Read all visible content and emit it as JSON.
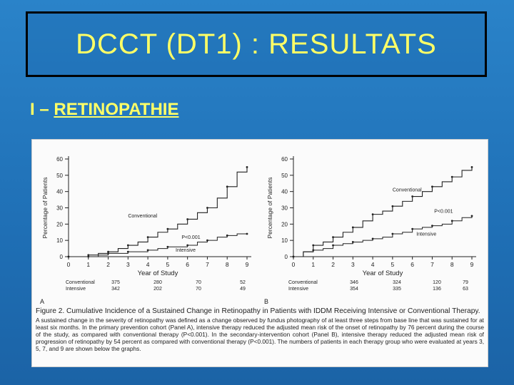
{
  "slide": {
    "title": "DCCT (DT1) : RESULTATS",
    "subtitle_prefix": "I – ",
    "subtitle_main": "RETINOPATHIE"
  },
  "colors": {
    "title": "#ffff66",
    "background": "#2a83c9",
    "ink": "#222222"
  },
  "chart_data": [
    {
      "panel": "A",
      "type": "line",
      "ylabel": "Percentage of Patients",
      "xlabel": "Year of Study",
      "xlim": [
        0,
        9
      ],
      "ylim": [
        0,
        60
      ],
      "x_ticks": [
        "0",
        "1",
        "2",
        "3",
        "4",
        "5",
        "6",
        "7",
        "8",
        "9"
      ],
      "y_ticks": [
        "0",
        "10",
        "20",
        "30",
        "40",
        "50",
        "60"
      ],
      "series": [
        {
          "name": "Conventional",
          "x": [
            0,
            0.5,
            1,
            1.5,
            2,
            2.5,
            3,
            3.5,
            4,
            4.5,
            5,
            5.5,
            6,
            6.5,
            7,
            7.5,
            8,
            8.5,
            9
          ],
          "values": [
            0,
            0,
            1,
            2,
            3,
            5,
            7,
            9,
            12,
            15,
            17,
            20,
            23,
            27,
            30,
            36,
            43,
            52,
            55
          ]
        },
        {
          "name": "Intensive",
          "x": [
            0,
            0.5,
            1,
            1.5,
            2,
            2.5,
            3,
            3.5,
            4,
            4.5,
            5,
            5.5,
            6,
            6.5,
            7,
            7.5,
            8,
            8.5,
            9
          ],
          "values": [
            0,
            0,
            0,
            1,
            2,
            2,
            3,
            3,
            4,
            5,
            6,
            6,
            7,
            9,
            10,
            12,
            13,
            14,
            14
          ]
        }
      ],
      "annotations": {
        "conventional": "Conventional",
        "intensive": "Intensive",
        "pvalue": "P<0.001"
      },
      "at_risk": {
        "rows": [
          {
            "label": "Conventional",
            "values": [
              "375",
              "280",
              "70",
              "52"
            ]
          },
          {
            "label": "Intensive",
            "values": [
              "342",
              "202",
              "70",
              "49"
            ]
          }
        ]
      }
    },
    {
      "panel": "B",
      "type": "line",
      "ylabel": "Percentage of Patients",
      "xlabel": "Year of Study",
      "xlim": [
        0,
        9
      ],
      "ylim": [
        0,
        60
      ],
      "x_ticks": [
        "0",
        "1",
        "2",
        "3",
        "4",
        "5",
        "6",
        "7",
        "8",
        "9"
      ],
      "y_ticks": [
        "0",
        "10",
        "20",
        "30",
        "40",
        "50",
        "60"
      ],
      "series": [
        {
          "name": "Conventional",
          "x": [
            0,
            0.5,
            1,
            1.5,
            2,
            2.5,
            3,
            3.5,
            4,
            4.5,
            5,
            5.5,
            6,
            6.5,
            7,
            7.5,
            8,
            8.5,
            9
          ],
          "values": [
            0,
            3,
            7,
            9,
            12,
            15,
            18,
            22,
            26,
            28,
            31,
            34,
            37,
            40,
            43,
            46,
            49,
            53,
            55
          ]
        },
        {
          "name": "Intensive",
          "x": [
            0,
            0.5,
            1,
            1.5,
            2,
            2.5,
            3,
            3.5,
            4,
            4.5,
            5,
            5.5,
            6,
            6.5,
            7,
            7.5,
            8,
            8.5,
            9
          ],
          "values": [
            0,
            3,
            4,
            5,
            7,
            8,
            9,
            10,
            11,
            12,
            14,
            15,
            17,
            18,
            19,
            20,
            22,
            24,
            25
          ]
        }
      ],
      "annotations": {
        "conventional": "Conventional",
        "intensive": "Intensive",
        "pvalue": "P<0.001"
      },
      "at_risk": {
        "rows": [
          {
            "label": "Conventional",
            "values": [
              "346",
              "324",
              "120",
              "79"
            ]
          },
          {
            "label": "Intensive",
            "values": [
              "354",
              "335",
              "136",
              "63"
            ]
          }
        ]
      }
    }
  ],
  "figure": {
    "caption_title": "Figure 2. Cumulative Incidence of a Sustained Change in Retinopathy in Patients with IDDM Receiving Intensive or Conventional Therapy.",
    "caption_body": "A sustained change in the severity of retinopathy was defined as a change observed by fundus photography of at least three steps from base line that was sustained for at least six months. In the primary prevention cohort (Panel A), intensive therapy reduced the adjusted mean risk of the onset of retinopathy by 76 percent during the course of the study, as compared with conventional therapy (P<0.001). In the secondary-intervention cohort (Panel B), intensive therapy reduced the adjusted mean risk of progression of retinopathy by 54 percent as compared with conventional therapy (P<0.001). The numbers of patients in each therapy group who were evaluated at years 3, 5, 7, and 9 are shown below the graphs."
  }
}
